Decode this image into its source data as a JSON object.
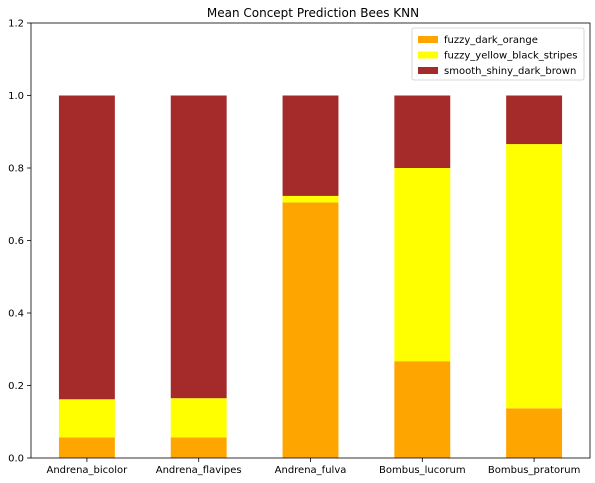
{
  "chart_data": {
    "type": "bar",
    "stacked": true,
    "title": "Mean Concept Prediction Bees KNN",
    "xlabel": "",
    "ylabel": "",
    "ylim": [
      0,
      1.2
    ],
    "yticks": [
      "0.0",
      "0.2",
      "0.4",
      "0.6",
      "0.8",
      "1.0",
      "1.2"
    ],
    "categories": [
      "Andrena_bicolor",
      "Andrena_flavipes",
      "Andrena_fulva",
      "Bombus_lucorum",
      "Bombus_pratorum"
    ],
    "series": [
      {
        "name": "fuzzy_dark_orange",
        "color": "#ffa500",
        "values": [
          0.057,
          0.057,
          0.705,
          0.267,
          0.137
        ]
      },
      {
        "name": "fuzzy_yellow_black_stripes",
        "color": "#ffff00",
        "values": [
          0.105,
          0.108,
          0.018,
          0.533,
          0.729
        ]
      },
      {
        "name": "smooth_shiny_dark_brown",
        "color": "#a52a2a",
        "values": [
          0.838,
          0.835,
          0.277,
          0.2,
          0.134
        ]
      }
    ],
    "legend_position": "top-right",
    "grid": false
  }
}
